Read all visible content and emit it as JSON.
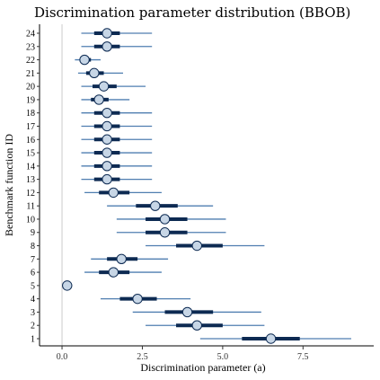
{
  "chart_data": {
    "type": "interval",
    "title": "Discrimination parameter distribution (BBOB)",
    "xlabel": "Discrimination parameter (a)",
    "ylabel": "Benchmark function ID",
    "xlim": [
      -0.7,
      9.7
    ],
    "x_ticks": [
      0.0,
      2.5,
      5.0,
      7.5
    ],
    "x_tick_labels": [
      "0.0",
      "2.5",
      "5.0",
      "7.5"
    ],
    "reference_line": 0,
    "grid": false,
    "colors": {
      "whisker": "#4f7eb0",
      "box": "#0d2a52",
      "point_fill": "#c7d6e6",
      "point_stroke": "#0d2a52",
      "reference": "#cccccc"
    },
    "series": [
      {
        "id": "1",
        "low": 4.3,
        "q1": 5.6,
        "median": 6.5,
        "q3": 7.4,
        "high": 9.0
      },
      {
        "id": "2",
        "low": 2.6,
        "q1": 3.55,
        "median": 4.2,
        "q3": 5.0,
        "high": 6.3
      },
      {
        "id": "3",
        "low": 2.2,
        "q1": 3.2,
        "median": 3.9,
        "q3": 4.7,
        "high": 6.2
      },
      {
        "id": "4",
        "low": 1.2,
        "q1": 1.8,
        "median": 2.35,
        "q3": 2.95,
        "high": 4.0
      },
      {
        "id": "5",
        "low": 0.12,
        "q1": 0.15,
        "median": 0.16,
        "q3": 0.17,
        "high": 0.2
      },
      {
        "id": "6",
        "low": 0.7,
        "q1": 1.15,
        "median": 1.6,
        "q3": 2.1,
        "high": 3.1
      },
      {
        "id": "7",
        "low": 0.9,
        "q1": 1.4,
        "median": 1.85,
        "q3": 2.35,
        "high": 3.3
      },
      {
        "id": "8",
        "low": 2.6,
        "q1": 3.55,
        "median": 4.2,
        "q3": 5.0,
        "high": 6.3
      },
      {
        "id": "9",
        "low": 1.7,
        "q1": 2.6,
        "median": 3.2,
        "q3": 3.9,
        "high": 5.1
      },
      {
        "id": "10",
        "low": 1.7,
        "q1": 2.6,
        "median": 3.2,
        "q3": 3.9,
        "high": 5.1
      },
      {
        "id": "11",
        "low": 1.4,
        "q1": 2.3,
        "median": 2.9,
        "q3": 3.6,
        "high": 4.7
      },
      {
        "id": "12",
        "low": 0.7,
        "q1": 1.15,
        "median": 1.6,
        "q3": 2.1,
        "high": 3.1
      },
      {
        "id": "13",
        "low": 0.6,
        "q1": 1.0,
        "median": 1.4,
        "q3": 1.8,
        "high": 2.8
      },
      {
        "id": "14",
        "low": 0.6,
        "q1": 1.0,
        "median": 1.4,
        "q3": 1.8,
        "high": 2.8
      },
      {
        "id": "15",
        "low": 0.6,
        "q1": 1.0,
        "median": 1.4,
        "q3": 1.8,
        "high": 2.8
      },
      {
        "id": "16",
        "low": 0.6,
        "q1": 1.0,
        "median": 1.4,
        "q3": 1.8,
        "high": 2.8
      },
      {
        "id": "17",
        "low": 0.6,
        "q1": 1.0,
        "median": 1.4,
        "q3": 1.8,
        "high": 2.8
      },
      {
        "id": "18",
        "low": 0.6,
        "q1": 1.0,
        "median": 1.4,
        "q3": 1.8,
        "high": 2.8
      },
      {
        "id": "19",
        "low": 0.6,
        "q1": 0.9,
        "median": 1.15,
        "q3": 1.45,
        "high": 2.1
      },
      {
        "id": "20",
        "low": 0.6,
        "q1": 0.95,
        "median": 1.3,
        "q3": 1.7,
        "high": 2.6
      },
      {
        "id": "21",
        "low": 0.5,
        "q1": 0.75,
        "median": 1.0,
        "q3": 1.3,
        "high": 1.9
      },
      {
        "id": "22",
        "low": 0.4,
        "q1": 0.55,
        "median": 0.7,
        "q3": 0.9,
        "high": 1.2
      },
      {
        "id": "23",
        "low": 0.6,
        "q1": 1.0,
        "median": 1.4,
        "q3": 1.8,
        "high": 2.8
      },
      {
        "id": "24",
        "low": 0.6,
        "q1": 1.0,
        "median": 1.4,
        "q3": 1.8,
        "high": 2.8
      }
    ]
  }
}
